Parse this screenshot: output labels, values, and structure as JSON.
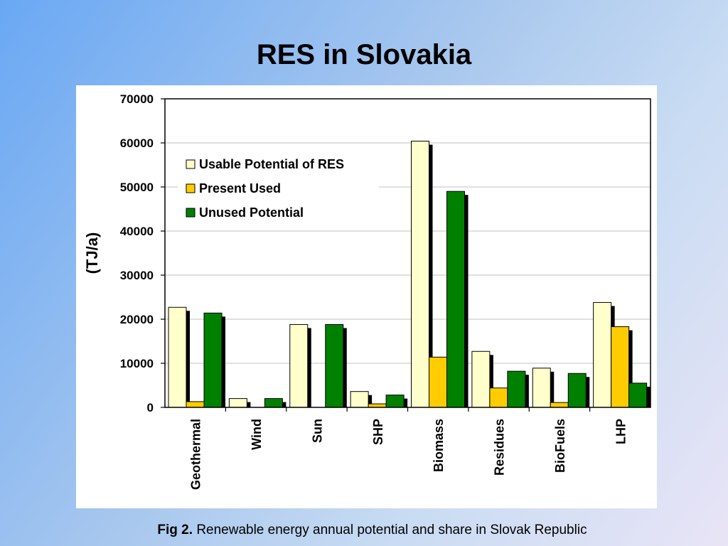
{
  "slide": {
    "title": "RES in Slovakia",
    "caption_label": "Fig 2.",
    "caption_text": "Renewable energy annual potential and share in Slovak Republic"
  },
  "colors": {
    "usable": "#ffffcc",
    "present": "#ffcc00",
    "unused": "#008000",
    "shadow": "#000000",
    "grid": "#c0c0c0"
  },
  "chart_data": {
    "type": "bar",
    "title": "",
    "xlabel": "",
    "ylabel": "(TJ/a)",
    "ylim": [
      0,
      70000
    ],
    "yticks": [
      "0",
      "10000",
      "20000",
      "30000",
      "40000",
      "50000",
      "60000",
      "70000"
    ],
    "grid": true,
    "legend_position": "top-left",
    "categories": [
      "Geothermal",
      "Wind",
      "Sun",
      "SHP",
      "Biomass",
      "Residues",
      "BioFuels",
      "LHP"
    ],
    "series": [
      {
        "name": "Usable Potential of RES",
        "values": [
          22700,
          2000,
          18800,
          3600,
          60400,
          12700,
          8900,
          23800
        ]
      },
      {
        "name": "Present Used",
        "values": [
          1300,
          0,
          0,
          800,
          11400,
          4400,
          1100,
          18300
        ]
      },
      {
        "name": "Unused Potential",
        "values": [
          21400,
          2000,
          18800,
          2800,
          49000,
          8200,
          7700,
          5500
        ]
      }
    ]
  }
}
